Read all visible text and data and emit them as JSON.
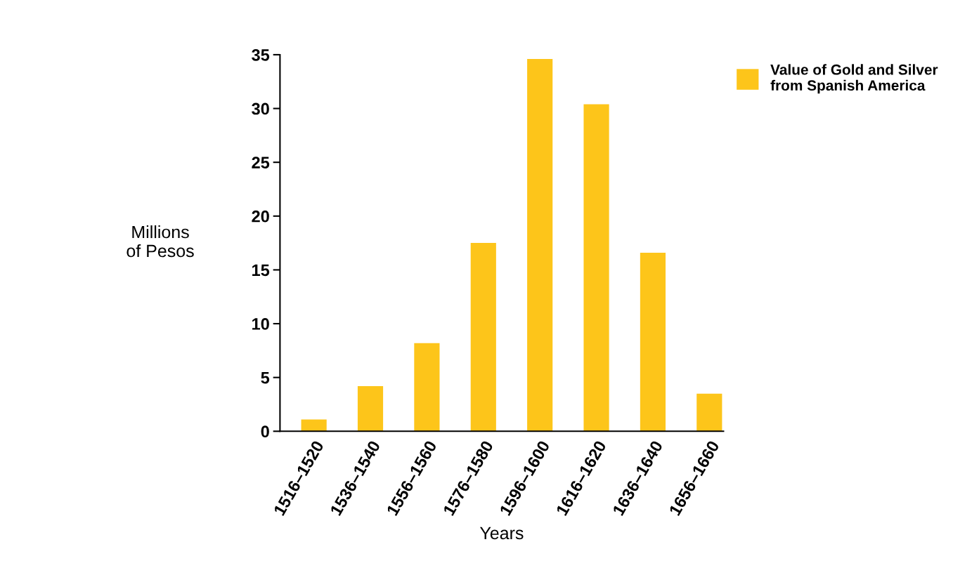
{
  "chart_data": {
    "type": "bar",
    "xlabel": "Years",
    "ylabel": "Millions\nof Pesos",
    "categories": [
      "1516–1520",
      "1536–1540",
      "1556–1560",
      "1576–1580",
      "1596–1600",
      "1616–1620",
      "1636–1640",
      "1656–1660"
    ],
    "series": [
      {
        "name": "Value of Gold and Silver\nfrom Spanish America",
        "color": "#fdc51a",
        "values": [
          1.1,
          4.2,
          8.2,
          17.5,
          34.6,
          30.4,
          16.6,
          3.5
        ]
      }
    ],
    "ylim": [
      0,
      35
    ],
    "yticks": [
      0,
      5,
      10,
      15,
      20,
      25,
      30,
      35
    ],
    "grid": false,
    "legend": "top right"
  }
}
